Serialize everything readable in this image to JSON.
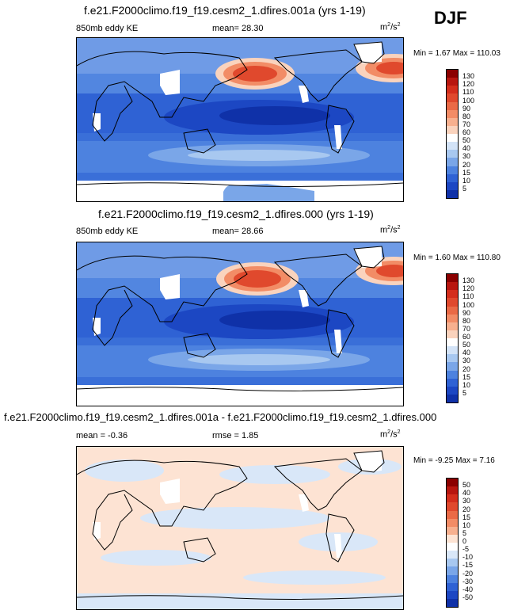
{
  "season": "DJF",
  "panels": [
    {
      "id": "p1",
      "title": "f.e21.F2000climo.f19_f19.cesm2_1.dfires.001a (yrs 1-19)",
      "left_label": "850mb eddy KE",
      "stat_label": "mean=",
      "stat_value": "28.30",
      "units_base": "m",
      "units_sup1": "2",
      "units_mid": "/s",
      "units_sup2": "2",
      "minmax": "Min =   1.67 Max = 110.03"
    },
    {
      "id": "p2",
      "title": "f.e21.F2000climo.f19_f19.cesm2_1.dfires.000 (yrs 1-19)",
      "left_label": "850mb eddy KE",
      "stat_label": "mean=",
      "stat_value": "28.66",
      "units_base": "m",
      "units_sup1": "2",
      "units_mid": "/s",
      "units_sup2": "2",
      "minmax": "Min =   1.60 Max = 110.80"
    },
    {
      "id": "p3",
      "title": "f.e21.F2000climo.f19_f19.cesm2_1.dfires.001a - f.e21.F2000climo.f19_f19.cesm2_1.dfires.000",
      "left_label": "mean =  -0.36",
      "stat_label": "rmse =",
      "stat_value": "1.85",
      "units_base": "m",
      "units_sup1": "2",
      "units_mid": "/s",
      "units_sup2": "2",
      "minmax": "Min =  -9.25 Max =   7.16"
    }
  ],
  "colorbars": {
    "abs": {
      "ticks": [
        "130",
        "120",
        "110",
        "100",
        "90",
        "80",
        "70",
        "60",
        "50",
        "40",
        "30",
        "20",
        "15",
        "10",
        "5"
      ],
      "colors": [
        "#8b0000",
        "#b8160f",
        "#d42e1c",
        "#e0492d",
        "#ea6a46",
        "#f28c66",
        "#f7b08f",
        "#fad3bd",
        "#ffffff",
        "#d3e3f7",
        "#a8c8f0",
        "#7aa6e8",
        "#4d82df",
        "#2f62d4",
        "#1c47c3",
        "#0f31a8"
      ]
    },
    "diff": {
      "ticks": [
        "50",
        "40",
        "30",
        "20",
        "15",
        "10",
        "5",
        "0",
        "-5",
        "-10",
        "-15",
        "-20",
        "-30",
        "-40",
        "-50"
      ],
      "colors": [
        "#8b0000",
        "#b8160f",
        "#d42e1c",
        "#e0492d",
        "#ea6a46",
        "#f28c66",
        "#f7b08f",
        "#fde3d3",
        "#ffffff",
        "#d9e7f8",
        "#a8c8f0",
        "#7aa6e8",
        "#4d82df",
        "#2f62d4",
        "#1c47c3",
        "#0f31a8"
      ]
    }
  },
  "chart_data": [
    {
      "type": "heatmap",
      "title": "f.e21.F2000climo.f19_f19.cesm2_1.dfires.001a (yrs 1-19)",
      "variable": "850mb eddy KE",
      "mean": 28.3,
      "min": 1.67,
      "max": 110.03,
      "units": "m2/s2",
      "levels": [
        5,
        10,
        15,
        20,
        30,
        40,
        50,
        60,
        70,
        80,
        90,
        100,
        110,
        120,
        130
      ]
    },
    {
      "type": "heatmap",
      "title": "f.e21.F2000climo.f19_f19.cesm2_1.dfires.000 (yrs 1-19)",
      "variable": "850mb eddy KE",
      "mean": 28.66,
      "min": 1.6,
      "max": 110.8,
      "units": "m2/s2",
      "levels": [
        5,
        10,
        15,
        20,
        30,
        40,
        50,
        60,
        70,
        80,
        90,
        100,
        110,
        120,
        130
      ]
    },
    {
      "type": "heatmap",
      "title": "f.e21.F2000climo.f19_f19.cesm2_1.dfires.001a - f.e21.F2000climo.f19_f19.cesm2_1.dfires.000",
      "mean": -0.36,
      "rmse": 1.85,
      "min": -9.25,
      "max": 7.16,
      "units": "m2/s2",
      "levels": [
        -50,
        -40,
        -30,
        -20,
        -15,
        -10,
        -5,
        0,
        5,
        10,
        15,
        20,
        30,
        40,
        50
      ]
    }
  ]
}
